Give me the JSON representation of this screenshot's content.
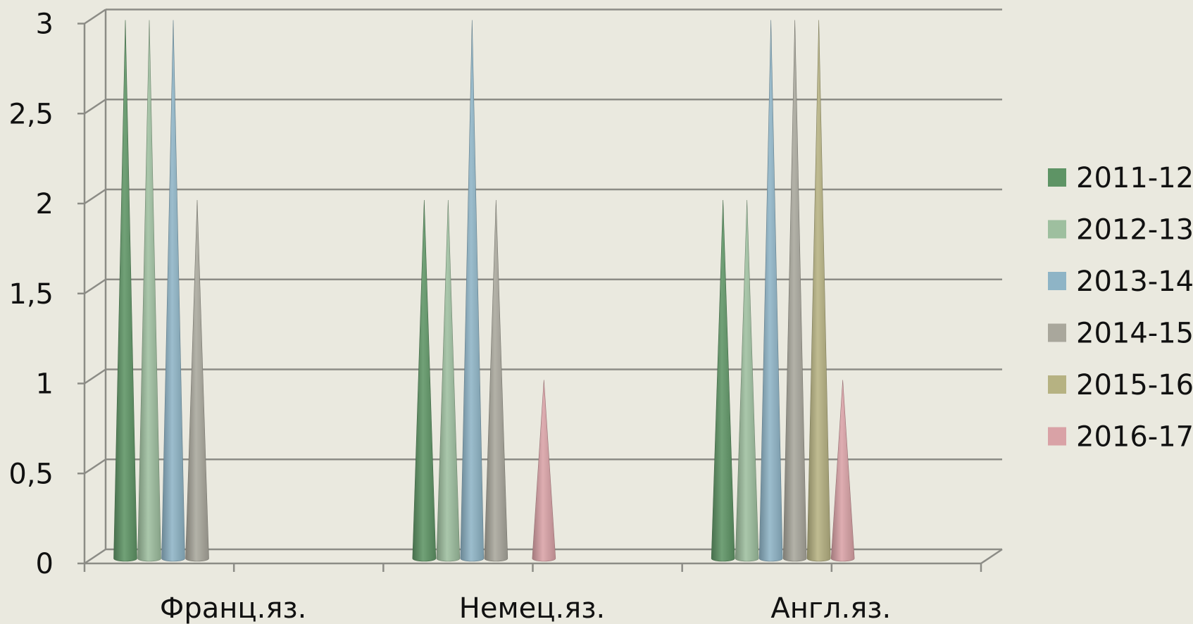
{
  "chart_data": {
    "type": "bar",
    "bar_shape": "cone",
    "categories": [
      "Франц.яз.",
      "Немец.яз.",
      "Англ.яз."
    ],
    "series": [
      {
        "name": "2011-12",
        "color": "#5e9465",
        "values": [
          3,
          2,
          2
        ]
      },
      {
        "name": "2012-13",
        "color": "#9ebf9f",
        "values": [
          3,
          2,
          2
        ]
      },
      {
        "name": "2013-14",
        "color": "#8eb4c6",
        "values": [
          3,
          3,
          3
        ]
      },
      {
        "name": "2014-15",
        "color": "#a9a79c",
        "values": [
          2,
          2,
          3
        ]
      },
      {
        "name": "2015-16",
        "color": "#b6b282",
        "values": [
          0,
          0,
          3
        ]
      },
      {
        "name": "2016-17",
        "color": "#d9a2a6",
        "values": [
          0,
          1,
          1
        ]
      }
    ],
    "ylim": [
      0,
      3
    ],
    "yticks": [
      "0",
      "0,5",
      "1",
      "1,5",
      "2",
      "2,5",
      "3"
    ],
    "title": "",
    "xlabel": "",
    "ylabel": "",
    "grid": true,
    "legend_position": "right"
  }
}
